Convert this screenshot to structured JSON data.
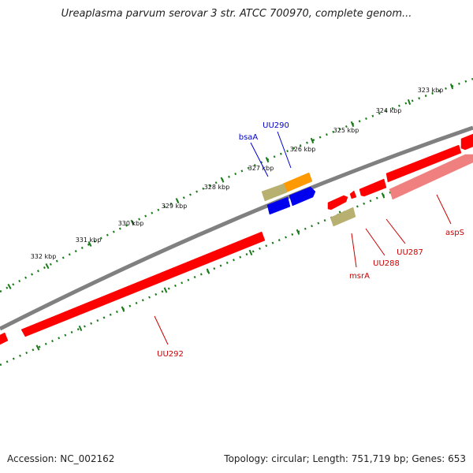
{
  "header": {
    "title": "Ureaplasma parvum serovar 3 str. ATCC 700970, complete genom..."
  },
  "footer": {
    "accession": "Accession: NC_002162",
    "summary": "Topology: circular; Length: 751,719 bp; Genes: 653"
  },
  "colors": {
    "backbone": "#808080",
    "ruler": "#1a7a1a",
    "gene_red": "#ff0000",
    "gene_pink": "#f08080",
    "gene_orange": "#ff9900",
    "gene_blue": "#0000ee",
    "gene_khaki": "#b8b070",
    "label_blue": "#0000cc",
    "label_red": "#cc0000"
  },
  "ruler": {
    "ticks": [
      {
        "label": "323 kbp"
      },
      {
        "label": "324 kbp"
      },
      {
        "label": "325 kbp"
      },
      {
        "label": "326 kbp"
      },
      {
        "label": "327 kbp"
      },
      {
        "label": "328 kbp"
      },
      {
        "label": "329 kbp"
      },
      {
        "label": "330 kbp"
      },
      {
        "label": "331 kbp"
      },
      {
        "label": "332 kbp"
      }
    ]
  },
  "labels": {
    "uu290": "UU290",
    "bsaA": "bsaA",
    "aspS": "aspS",
    "uu287": "UU287",
    "uu288": "UU288",
    "msrA": "msrA",
    "uu292": "UU292"
  }
}
